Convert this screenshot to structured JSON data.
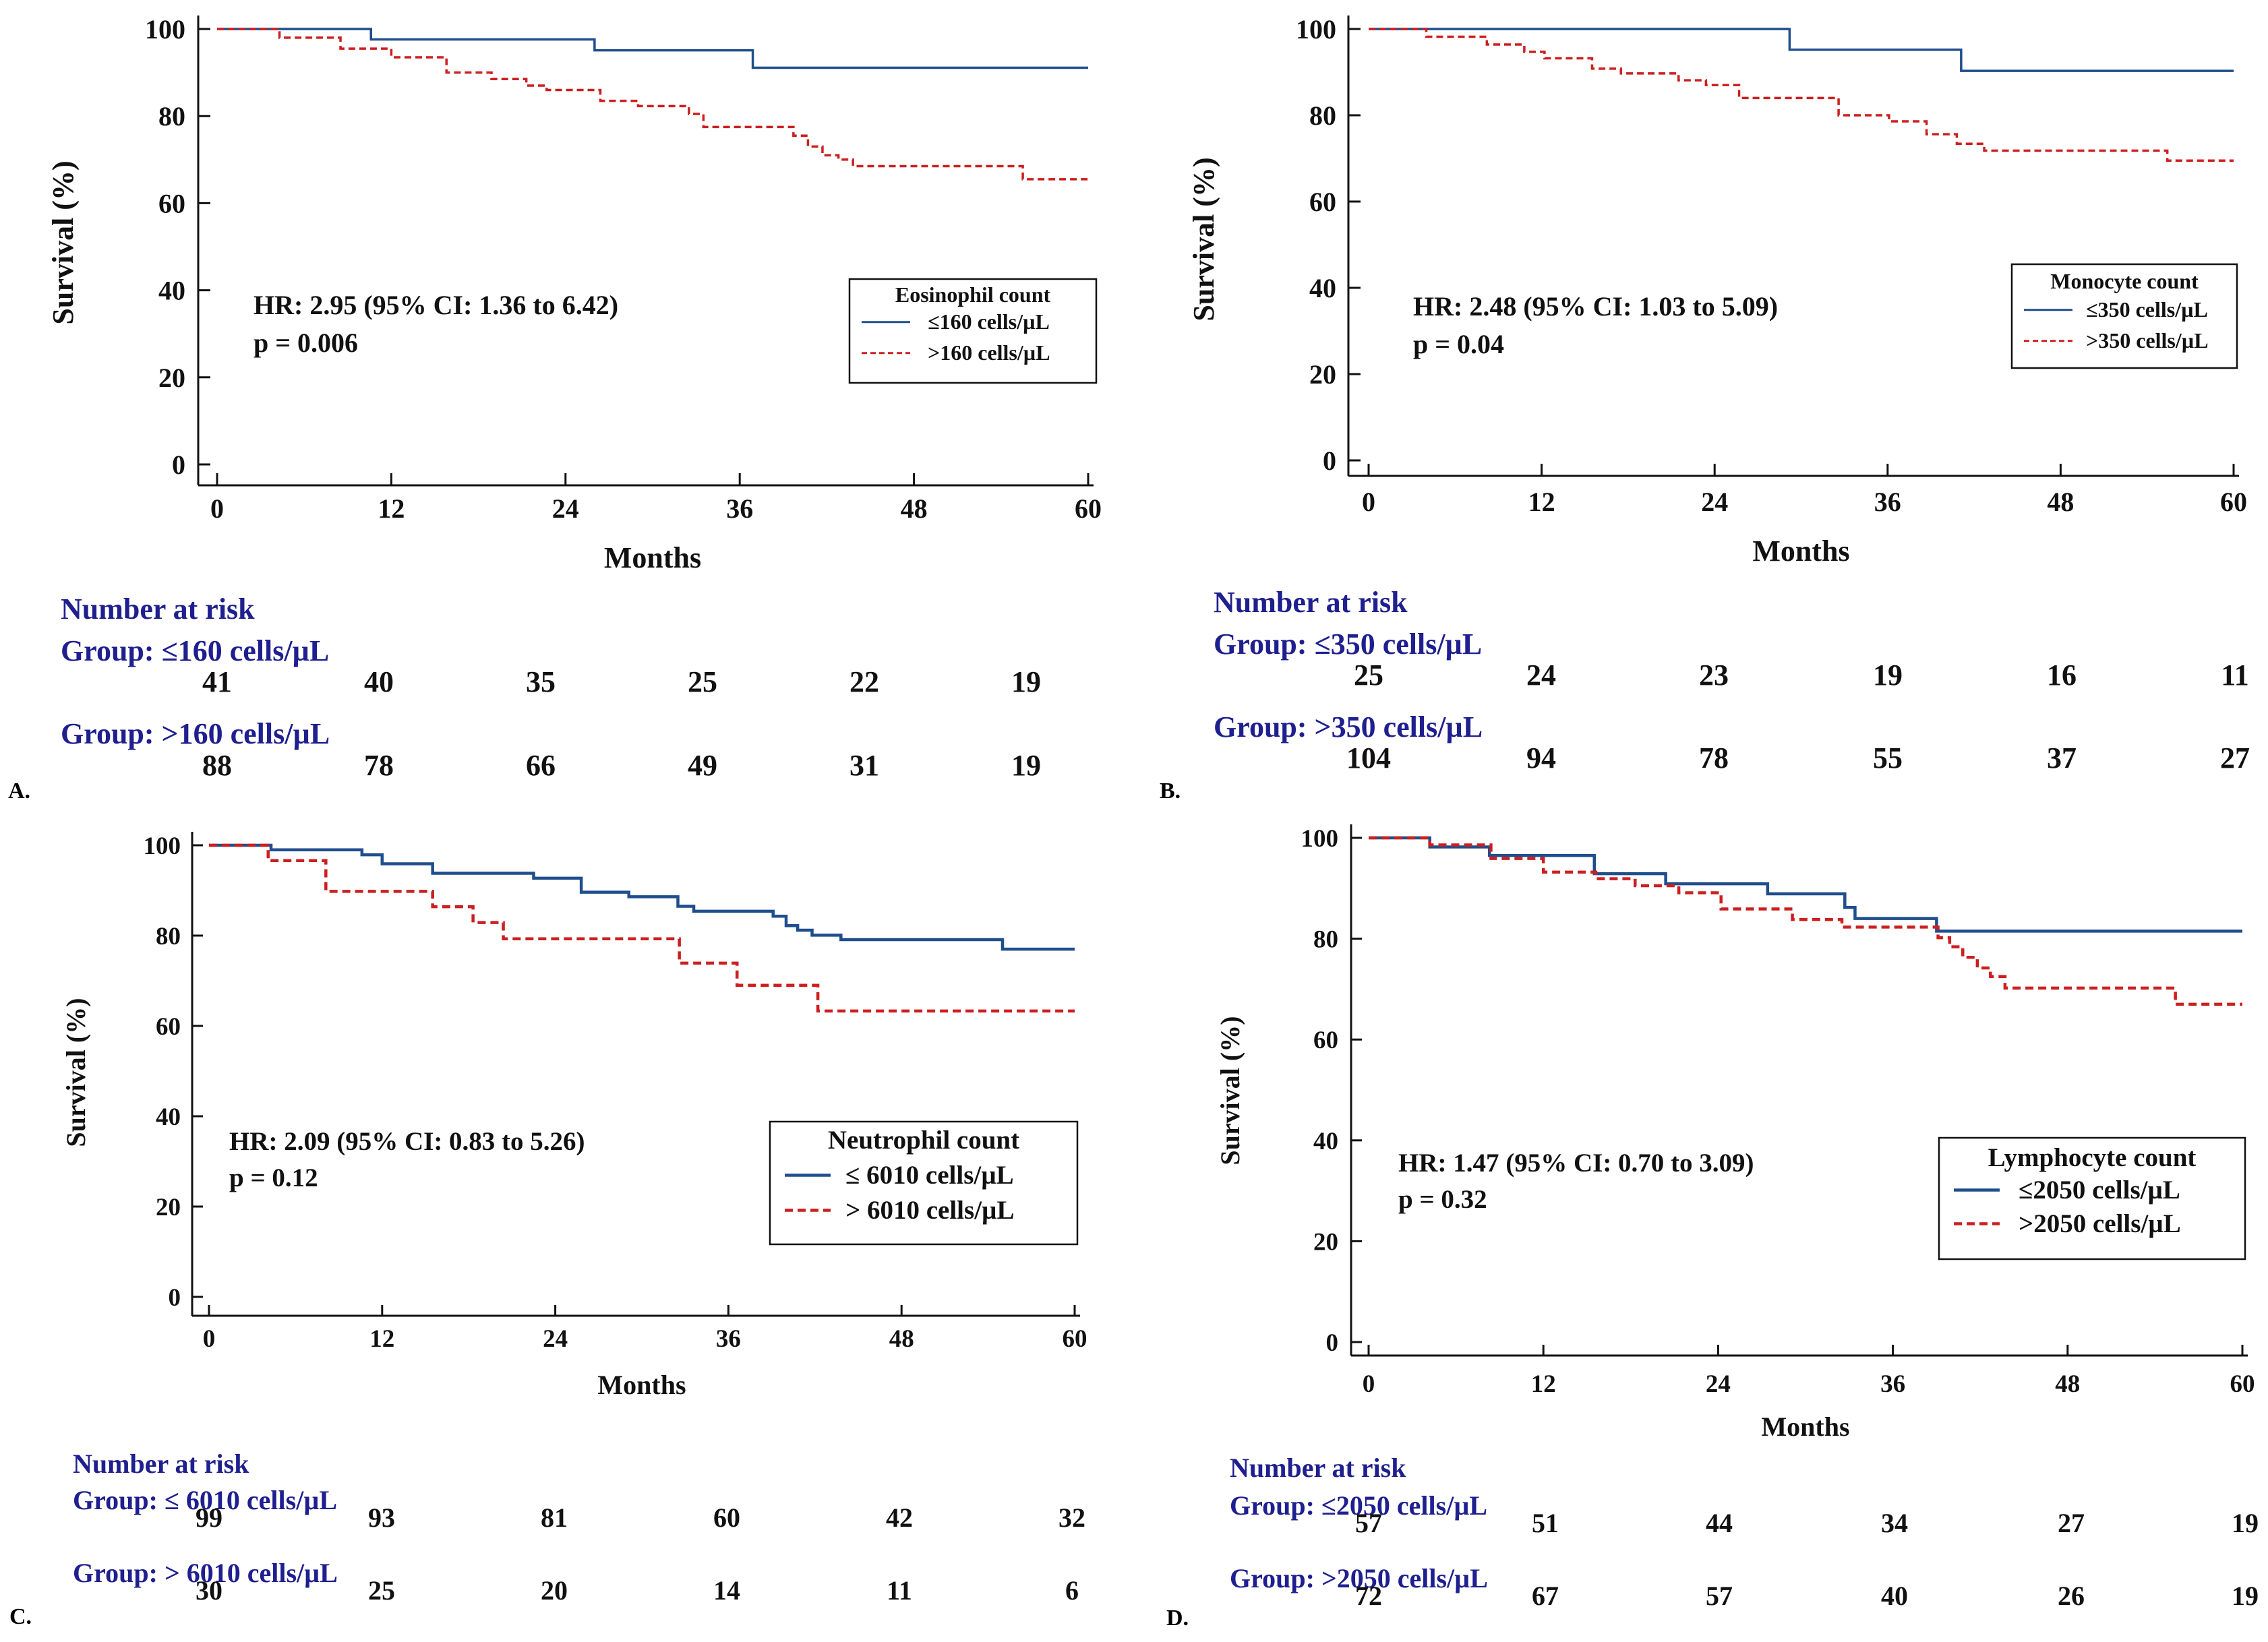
{
  "chart_data": [
    {
      "panel": "A.",
      "type": "line",
      "style": "kaplan-meier step",
      "xlabel": "Months",
      "ylabel": "Survival (%)",
      "x_ticks": [
        0,
        12,
        24,
        36,
        48,
        60
      ],
      "y_ticks": [
        0,
        20,
        40,
        60,
        80,
        100
      ],
      "xlim": [
        0,
        60
      ],
      "ylim": [
        0,
        100
      ],
      "annotation": [
        "HR: 2.95 (95% CI: 1.36 to 6.42)",
        "p = 0.006"
      ],
      "legend_title": "Eosinophil count",
      "series": [
        {
          "name": "≤160 cells/µL",
          "color": "#1f4e8c",
          "dash": false,
          "steps": [
            [
              0,
              100
            ],
            [
              10.6,
              97.6
            ],
            [
              26,
              95.1
            ],
            [
              36.9,
              91.1
            ],
            [
              60,
              91.1
            ]
          ]
        },
        {
          "name": ">160 cells/µL",
          "color": "#cc1f1f",
          "dash": true,
          "steps": [
            [
              0,
              100
            ],
            [
              4.3,
              98
            ],
            [
              8.5,
              95.5
            ],
            [
              12,
              93.5
            ],
            [
              15.8,
              90
            ],
            [
              18.9,
              88.5
            ],
            [
              21.3,
              87
            ],
            [
              22.7,
              86
            ],
            [
              26.4,
              83.5
            ],
            [
              29,
              82.3
            ],
            [
              32.5,
              80.5
            ],
            [
              33.5,
              77.5
            ],
            [
              39.7,
              75.5
            ],
            [
              40.7,
              73
            ],
            [
              41.7,
              71
            ],
            [
              42.8,
              70
            ],
            [
              43.8,
              68.5
            ],
            [
              55.5,
              65.5
            ],
            [
              60,
              65.5
            ]
          ]
        }
      ],
      "risk_table": {
        "title": "Number at risk",
        "groups": [
          {
            "label": "Group: ≤160 cells/µL",
            "values": [
              "41",
              "40",
              "35",
              "25",
              "22",
              "19"
            ]
          },
          {
            "label": "Group: >160 cells/µL",
            "values": [
              "88",
              "78",
              "66",
              "49",
              "31",
              "19"
            ]
          }
        ]
      }
    },
    {
      "panel": "B.",
      "type": "line",
      "style": "kaplan-meier step",
      "xlabel": "Months",
      "ylabel": "Survival  (%)",
      "x_ticks": [
        0,
        12,
        24,
        36,
        48,
        60
      ],
      "y_ticks": [
        0,
        20,
        40,
        60,
        80,
        100
      ],
      "xlim": [
        0,
        60
      ],
      "ylim": [
        0,
        100
      ],
      "annotation": [
        "HR: 2.48 (95% CI: 1.03 to 5.09)",
        "p = 0.04"
      ],
      "legend_title": "Monocyte count",
      "series": [
        {
          "name": "≤350 cells/µL",
          "color": "#1f4e8c",
          "dash": false,
          "steps": [
            [
              0,
              100
            ],
            [
              29.2,
              95.2
            ],
            [
              41.1,
              90.3
            ],
            [
              60,
              90.3
            ]
          ]
        },
        {
          "name": ">350 cells/µL",
          "color": "#cc1f1f",
          "dash": true,
          "steps": [
            [
              0,
              100
            ],
            [
              4,
              98.2
            ],
            [
              8.2,
              96.4
            ],
            [
              10.8,
              94.7
            ],
            [
              12.2,
              93.2
            ],
            [
              15.5,
              90.8
            ],
            [
              17.5,
              89.7
            ],
            [
              21.5,
              88.1
            ],
            [
              23.4,
              87
            ],
            [
              25.7,
              84
            ],
            [
              32.6,
              80
            ],
            [
              36.1,
              78.6
            ],
            [
              38.7,
              75.6
            ],
            [
              40.8,
              73.4
            ],
            [
              42.7,
              71.8
            ],
            [
              55.4,
              69.5
            ],
            [
              60,
              69.5
            ]
          ]
        }
      ],
      "risk_table": {
        "title": "Number at risk",
        "groups": [
          {
            "label": "Group: ≤350 cells/µL",
            "values": [
              "25",
              "24",
              "23",
              "19",
              "16",
              "11"
            ]
          },
          {
            "label": "Group: >350 cells/µL",
            "values": [
              "104",
              "94",
              "78",
              "55",
              "37",
              "27"
            ]
          }
        ]
      }
    },
    {
      "panel": "C.",
      "type": "line",
      "style": "kaplan-meier step",
      "xlabel": "Months",
      "ylabel": "Survival (%)",
      "x_ticks": [
        0,
        12,
        24,
        36,
        48,
        60
      ],
      "y_ticks": [
        0,
        20,
        40,
        60,
        80,
        100
      ],
      "xlim": [
        0,
        60
      ],
      "ylim": [
        0,
        100
      ],
      "annotation": [
        "HR: 2.09 (95% CI: 0.83 to 5.26)",
        "p = 0.12"
      ],
      "legend_title": "Neutrophil count",
      "series": [
        {
          "name": "≤ 6010 cells/µL",
          "color": "#1f4e8c",
          "dash": false,
          "steps": [
            [
              0,
              100
            ],
            [
              4.3,
              99
            ],
            [
              10.6,
              97.9
            ],
            [
              12,
              95.9
            ],
            [
              15.5,
              93.8
            ],
            [
              22.5,
              92.7
            ],
            [
              25.8,
              89.6
            ],
            [
              29.1,
              88.6
            ],
            [
              32.5,
              86.5
            ],
            [
              33.6,
              85.4
            ],
            [
              39.1,
              84.3
            ],
            [
              40,
              82.2
            ],
            [
              40.8,
              81.2
            ],
            [
              41.8,
              80.1
            ],
            [
              43.8,
              79.1
            ],
            [
              55,
              77
            ],
            [
              60,
              77
            ]
          ]
        },
        {
          "name": "> 6010 cells/µL",
          "color": "#cc1f1f",
          "dash": true,
          "steps": [
            [
              0,
              100
            ],
            [
              4.1,
              96.6
            ],
            [
              8.1,
              89.8
            ],
            [
              15.5,
              86.4
            ],
            [
              18.3,
              82.9
            ],
            [
              20.4,
              79.3
            ],
            [
              32.6,
              73.9
            ],
            [
              36.6,
              69
            ],
            [
              42.2,
              63.3
            ],
            [
              60,
              63.3
            ]
          ]
        }
      ],
      "risk_table": {
        "title": "Number at risk",
        "groups": [
          {
            "label": "Group: ≤ 6010 cells/µL",
            "values": [
              "99",
              "93",
              "81",
              "60",
              "42",
              "32"
            ]
          },
          {
            "label": "Group: > 6010 cells/µL",
            "values": [
              "30",
              "25",
              "20",
              "14",
              "11",
              "6"
            ]
          }
        ]
      }
    },
    {
      "panel": "D.",
      "type": "line",
      "style": "kaplan-meier step",
      "xlabel": "Months",
      "ylabel": "Survival (%)",
      "x_ticks": [
        0,
        12,
        24,
        36,
        48,
        60
      ],
      "y_ticks": [
        0,
        20,
        40,
        60,
        80,
        100
      ],
      "xlim": [
        0,
        60
      ],
      "ylim": [
        0,
        100
      ],
      "annotation": [
        "HR: 1.47 (95% CI: 0.70 to 3.09)",
        "p = 0.32"
      ],
      "legend_title": "Lymphocyte count",
      "series": [
        {
          "name": "≤2050 cells/µL",
          "color": "#1f4e8c",
          "dash": false,
          "steps": [
            [
              0,
              100
            ],
            [
              4.2,
              98.2
            ],
            [
              8.3,
              96.5
            ],
            [
              15.5,
              92.9
            ],
            [
              20.4,
              90.9
            ],
            [
              27.4,
              88.9
            ],
            [
              32.7,
              86.2
            ],
            [
              33.4,
              84
            ],
            [
              39,
              81.5
            ],
            [
              60,
              81.5
            ]
          ]
        },
        {
          "name": ">2050 cells/µL",
          "color": "#cc1f1f",
          "dash": true,
          "steps": [
            [
              0,
              100
            ],
            [
              4.2,
              98.6
            ],
            [
              8.4,
              95.9
            ],
            [
              12,
              93.2
            ],
            [
              15.6,
              91.9
            ],
            [
              18.3,
              90.5
            ],
            [
              21.3,
              89.1
            ],
            [
              24.2,
              85.9
            ],
            [
              29.1,
              83.8
            ],
            [
              32.5,
              82.3
            ],
            [
              39.1,
              80.2
            ],
            [
              39.9,
              78.4
            ],
            [
              40.8,
              76.3
            ],
            [
              41.8,
              74.2
            ],
            [
              42.7,
              72.5
            ],
            [
              43.7,
              70.2
            ],
            [
              55.4,
              67
            ],
            [
              60,
              67
            ]
          ]
        }
      ],
      "risk_table": {
        "title": "Number at risk",
        "groups": [
          {
            "label": "Group: ≤2050 cells/µL",
            "values": [
              "57",
              "51",
              "44",
              "34",
              "27",
              "19"
            ]
          },
          {
            "label": "Group: >2050 cells/µL",
            "values": [
              "72",
              "67",
              "57",
              "40",
              "26",
              "19"
            ]
          }
        ]
      }
    }
  ]
}
